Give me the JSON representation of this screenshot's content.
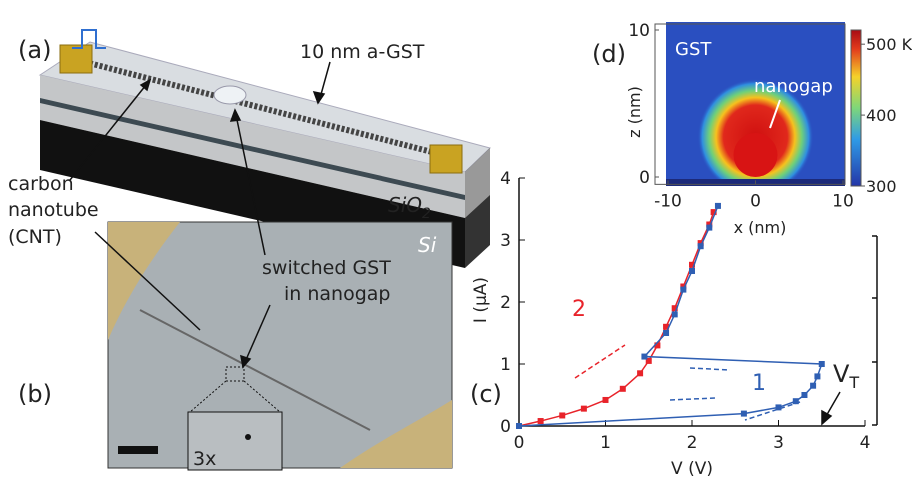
{
  "labels": {
    "panel_a": "(a)",
    "panel_b": "(b)",
    "panel_c": "(c)",
    "panel_d": "(d)",
    "gst_layer": "10 nm a-GST",
    "cnt": [
      "carbon",
      "nanotube",
      "(CNT)"
    ],
    "sio2": {
      "main": "SiO",
      "sub": "2"
    },
    "si": "Si",
    "switched": [
      "switched GST",
      "in nanogap"
    ],
    "zoom": "3x"
  },
  "chart_data": [
    {
      "type": "line",
      "xlabel": "V (V)",
      "ylabel": "I (μA)",
      "xlim": [
        0,
        4
      ],
      "ylim": [
        0,
        4
      ],
      "xticks": [
        0,
        1,
        2,
        3,
        4
      ],
      "yticks": [
        0,
        1,
        2,
        3,
        4
      ],
      "threshold_label": {
        "main": "V",
        "sub": "T"
      },
      "series": [
        {
          "name": "2",
          "color": "#e8232a",
          "x": [
            0,
            0.25,
            0.5,
            0.75,
            1.0,
            1.2,
            1.4,
            1.5,
            1.6,
            1.7,
            1.8,
            1.9,
            2.0,
            2.1,
            2.2,
            2.25
          ],
          "values": [
            0,
            0.08,
            0.17,
            0.28,
            0.42,
            0.6,
            0.85,
            1.05,
            1.3,
            1.6,
            1.9,
            2.25,
            2.6,
            2.95,
            3.25,
            3.45
          ]
        },
        {
          "name": "1",
          "color": "#2f5fb3",
          "x": [
            0,
            2.6,
            3.0,
            3.2,
            3.3,
            3.4,
            3.45,
            3.5,
            1.45,
            1.7,
            1.8,
            1.9,
            2.0,
            2.1,
            2.2,
            2.3
          ],
          "values": [
            0,
            0.2,
            0.3,
            0.4,
            0.5,
            0.65,
            0.8,
            1.0,
            1.12,
            1.5,
            1.8,
            2.2,
            2.5,
            2.9,
            3.2,
            3.55
          ]
        }
      ]
    },
    {
      "type": "heatmap",
      "xlabel": "x (nm)",
      "ylabel": "z (nm)",
      "region_label": "GST",
      "annotation": "nanogap",
      "xlim": [
        -10,
        10
      ],
      "ylim": [
        -0.5,
        10
      ],
      "xticks": [
        -10,
        0,
        10
      ],
      "yticks": [
        0,
        10
      ],
      "colorbar_lim": [
        300,
        520
      ],
      "colorbar_ticks": [
        300,
        400,
        {
          "value": 500,
          "label": "500 K"
        }
      ]
    }
  ]
}
